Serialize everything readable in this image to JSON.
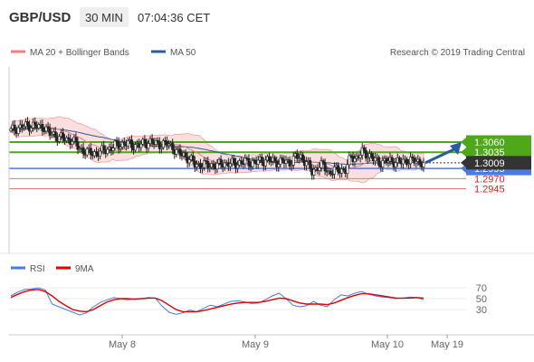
{
  "header": {
    "pair": "GBP/USD",
    "timeframe": "30 MIN",
    "time": "07:04:36 CET"
  },
  "legend": {
    "bollinger_label": "MA 20 + Bollinger Bands",
    "ma50_label": "MA 50",
    "source": "Research © 2019 Trading Central",
    "rsi_label": "RSI",
    "ma9_label": "9MA"
  },
  "colors": {
    "resistance": "#4fa81a",
    "support": "#4a7be0",
    "support_line": "#e07b7b",
    "bollinger": "#f4a0a0",
    "ma50": "#2e5b9a",
    "rsi": "#4a7be0",
    "ma9": "#e00000",
    "arrow": "#2a5aa0",
    "current": "#333333"
  },
  "chart_data": [
    {
      "type": "candlestick",
      "title": "GBP/USD 30 MIN",
      "x_ticks": [
        "May 8",
        "May 9",
        "May 10",
        "May 19"
      ],
      "current_price": "1.3009",
      "levels": [
        {
          "value": "1.3060",
          "kind": "resistance"
        },
        {
          "value": "1.3035",
          "kind": "resistance"
        },
        {
          "value": "1.2995",
          "kind": "support-main"
        },
        {
          "value": "1.2970",
          "kind": "support"
        },
        {
          "value": "1.2945",
          "kind": "support"
        }
      ],
      "series": [
        {
          "name": "MA 20 + Bollinger Bands"
        },
        {
          "name": "MA 50"
        }
      ],
      "close_path": [
        1.3088,
        1.3094,
        1.3098,
        1.31,
        1.3101,
        1.3097,
        1.3098,
        1.308,
        1.3077,
        1.3071,
        1.3066,
        1.3066,
        1.3048,
        1.3039,
        1.3033,
        1.3033,
        1.3035,
        1.3042,
        1.3045,
        1.3053,
        1.3055,
        1.3056,
        1.3052,
        1.3051,
        1.3058,
        1.306,
        1.3056,
        1.3055,
        1.3056,
        1.3048,
        1.3032,
        1.3028,
        1.3018,
        1.3005,
        1.3004,
        1.3003,
        1.3003,
        1.3002,
        1.3008,
        1.3007,
        1.3006,
        1.3009,
        1.3011,
        1.301,
        1.301,
        1.3014,
        1.3016,
        1.3013,
        1.3011,
        1.3012,
        1.301,
        1.3022,
        1.3023,
        1.301,
        1.2985,
        1.3,
        1.3002,
        1.2985,
        1.299,
        1.2992,
        1.299,
        1.3025,
        1.302,
        1.3035,
        1.303,
        1.3018,
        1.301,
        1.3012,
        1.3013,
        1.3012,
        1.301,
        1.3016,
        1.3013,
        1.3012,
        1.3009
      ],
      "ylim": [
        1.2935,
        1.3112
      ]
    },
    {
      "type": "line",
      "title": "RSI",
      "y_ticks": [
        70,
        50,
        30
      ],
      "ylim": [
        10,
        80
      ],
      "series": [
        {
          "name": "RSI",
          "values": [
            55,
            62,
            67,
            68,
            70,
            66,
            40,
            35,
            30,
            25,
            20,
            24,
            35,
            43,
            48,
            52,
            50,
            48,
            50,
            50,
            52,
            51,
            36,
            25,
            21,
            24,
            29,
            26,
            32,
            38,
            35,
            40,
            45,
            46,
            44,
            41,
            42,
            48,
            55,
            60,
            50,
            38,
            35,
            37,
            45,
            38,
            35,
            48,
            57,
            55,
            60,
            63,
            58,
            55,
            53,
            52,
            50,
            51,
            53,
            52,
            48
          ]
        },
        {
          "name": "9MA",
          "values": [
            52,
            58,
            63,
            66,
            67,
            63,
            55,
            45,
            37,
            30,
            27,
            26,
            30,
            37,
            44,
            48,
            50,
            50,
            49,
            50,
            51,
            51,
            46,
            38,
            30,
            26,
            26,
            26,
            28,
            31,
            34,
            37,
            40,
            42,
            43,
            43,
            43,
            45,
            48,
            51,
            50,
            46,
            42,
            40,
            40,
            40,
            39,
            42,
            47,
            52,
            56,
            59,
            59,
            57,
            55,
            53,
            51,
            51,
            51,
            52,
            51
          ]
        }
      ]
    }
  ]
}
